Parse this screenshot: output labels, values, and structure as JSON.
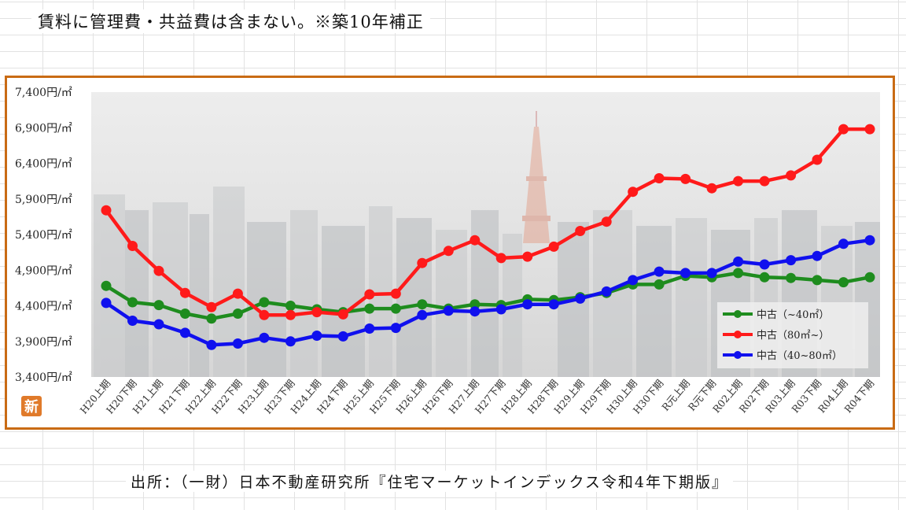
{
  "header": {
    "note": "賃料に管理費・共益費は含まない。※築10年補正"
  },
  "footer": {
    "source": "出所：（一財）日本不動産研究所『住宅マーケットインデックス令和4年下期版』"
  },
  "logo": {
    "text": "新"
  },
  "colors": {
    "frame": "#c96b14",
    "logo_bg": "#e07a2a"
  },
  "chart_data": {
    "type": "line",
    "title": "",
    "xlabel": "",
    "ylabel": "",
    "ylim": [
      3400,
      7400
    ],
    "yticks": [
      "3,400円/㎡",
      "3,900円/㎡",
      "4,400円/㎡",
      "4,900円/㎡",
      "5,400円/㎡",
      "5,900円/㎡",
      "6,400円/㎡",
      "6,900円/㎡",
      "7,400円/㎡"
    ],
    "ytick_values": [
      3400,
      3900,
      4400,
      4900,
      5400,
      5900,
      6400,
      6900,
      7400
    ],
    "categories": [
      "H20上期",
      "H20下期",
      "H21上期",
      "H21下期",
      "H22上期",
      "H22下期",
      "H23上期",
      "H23下期",
      "H24上期",
      "H24下期",
      "H25上期",
      "H25下期",
      "H26上期",
      "H26下期",
      "H27上期",
      "H27下期",
      "H28上期",
      "H28下期",
      "H29上期",
      "H29下期",
      "H30上期",
      "H30下期",
      "R元上期",
      "R元下期",
      "R02上期",
      "R02下期",
      "R03上期",
      "R03下期",
      "R04上期",
      "R04下期"
    ],
    "grid": false,
    "legend_position": "bottom-right",
    "series": [
      {
        "name": "中古（~40㎡）",
        "color": "#1e8c1e",
        "values": [
          4680,
          4450,
          4410,
          4290,
          4220,
          4290,
          4450,
          4400,
          4350,
          4310,
          4360,
          4360,
          4420,
          4360,
          4420,
          4410,
          4490,
          4480,
          4520,
          4580,
          4700,
          4700,
          4820,
          4800,
          4860,
          4800,
          4790,
          4760,
          4730,
          4800
        ]
      },
      {
        "name": "中古（80㎡~）",
        "color": "#ff1a1a",
        "values": [
          5740,
          5240,
          4890,
          4580,
          4380,
          4570,
          4270,
          4270,
          4310,
          4280,
          4560,
          4570,
          5000,
          5170,
          5320,
          5070,
          5090,
          5230,
          5450,
          5580,
          6000,
          6190,
          6180,
          6050,
          6150,
          6150,
          6230,
          6450,
          6880,
          6880
        ]
      },
      {
        "name": "中古（40~80㎡）",
        "color": "#1010ee",
        "values": [
          4440,
          4190,
          4140,
          4020,
          3850,
          3870,
          3950,
          3900,
          3980,
          3970,
          4080,
          4090,
          4270,
          4330,
          4320,
          4350,
          4420,
          4420,
          4500,
          4600,
          4760,
          4880,
          4860,
          4860,
          5020,
          4980,
          5040,
          5100,
          5270,
          5320
        ]
      }
    ]
  }
}
